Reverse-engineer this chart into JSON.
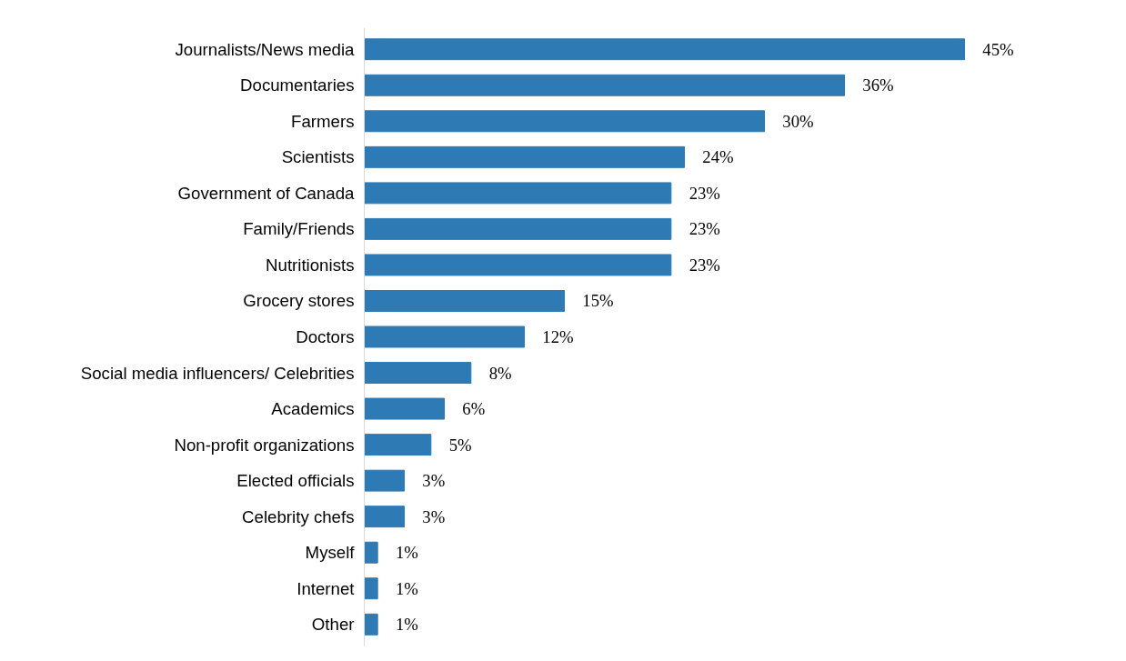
{
  "chart_data": {
    "type": "bar",
    "orientation": "horizontal",
    "categories": [
      "Journalists/News media",
      "Documentaries",
      "Farmers",
      "Scientists",
      "Government of Canada",
      "Family/Friends",
      "Nutritionists",
      "Grocery stores",
      "Doctors",
      "Social media influencers/ Celebrities",
      "Academics",
      "Non-profit organizations",
      "Elected officials",
      "Celebrity chefs",
      "Myself",
      "Internet",
      "Other"
    ],
    "values": [
      45,
      36,
      30,
      24,
      23,
      23,
      23,
      15,
      12,
      8,
      6,
      5,
      3,
      3,
      1,
      1,
      1
    ],
    "value_labels": [
      "45%",
      "36%",
      "30%",
      "24%",
      "23%",
      "23%",
      "23%",
      "15%",
      "12%",
      "8%",
      "6%",
      "5%",
      "3%",
      "3%",
      "1%",
      "1%",
      "1%"
    ],
    "color": "#2e7ab4",
    "grid": false
  }
}
